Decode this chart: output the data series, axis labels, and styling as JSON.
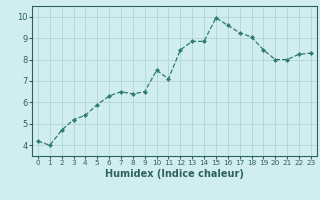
{
  "x": [
    0,
    1,
    2,
    3,
    4,
    5,
    6,
    7,
    8,
    9,
    10,
    11,
    12,
    13,
    14,
    15,
    16,
    17,
    18,
    19,
    20,
    21,
    22,
    23
  ],
  "y": [
    4.2,
    4.0,
    4.7,
    5.2,
    5.4,
    5.9,
    6.3,
    6.5,
    6.4,
    6.5,
    7.5,
    7.1,
    8.45,
    8.85,
    8.85,
    9.95,
    9.6,
    9.25,
    9.05,
    8.45,
    8.0,
    8.0,
    8.25,
    8.3
  ],
  "line_color": "#2e7d6e",
  "marker": "D",
  "marker_size": 2.0,
  "bg_color": "#d0eeee",
  "grid_color": "#b8d8d8",
  "xlabel": "Humidex (Indice chaleur)",
  "ylim": [
    3.5,
    10.5
  ],
  "xlim": [
    -0.5,
    23.5
  ],
  "yticks": [
    4,
    5,
    6,
    7,
    8,
    9,
    10
  ],
  "xticks": [
    0,
    1,
    2,
    3,
    4,
    5,
    6,
    7,
    8,
    9,
    10,
    11,
    12,
    13,
    14,
    15,
    16,
    17,
    18,
    19,
    20,
    21,
    22,
    23
  ],
  "tick_color": "#2e6060",
  "label_fontsize": 7.0,
  "tick_fontsize": 6.0,
  "xtick_fontsize": 5.2
}
